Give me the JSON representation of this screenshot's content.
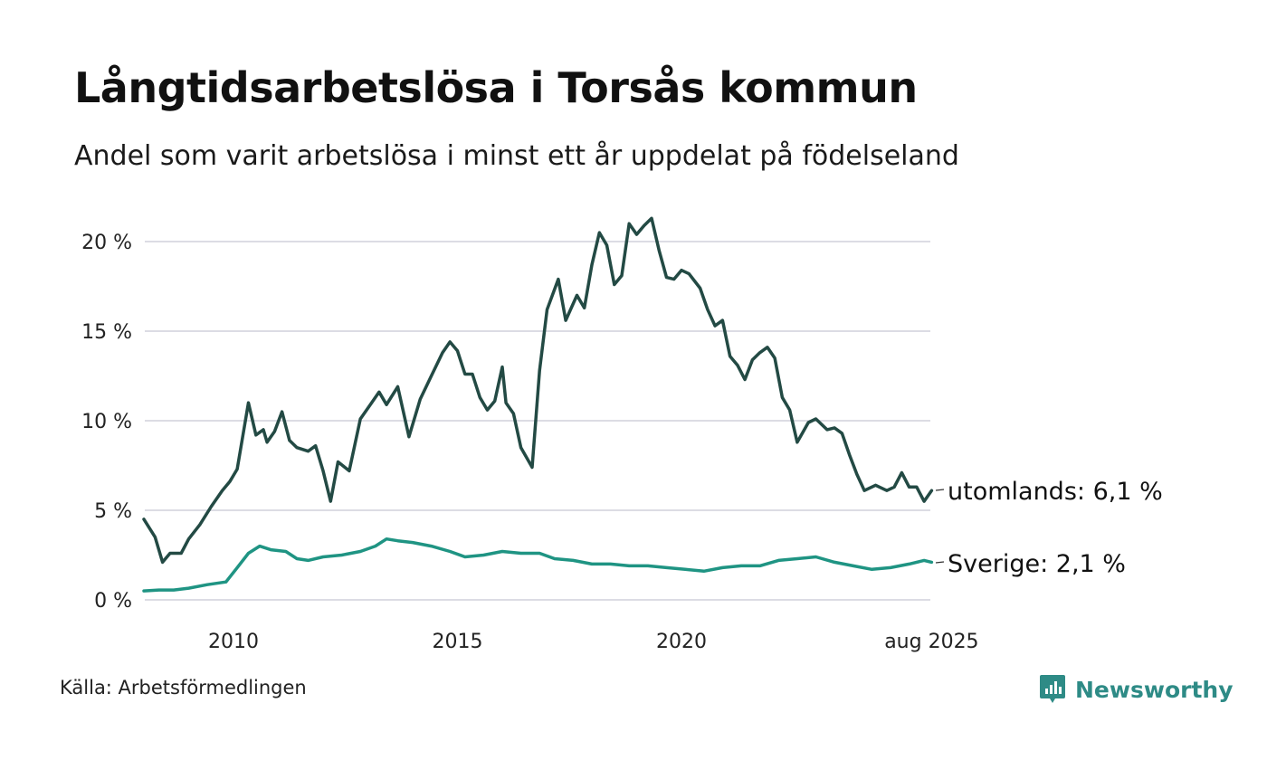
{
  "header": {
    "title": "Långtidsarbetslösa i Torsås kommun",
    "subtitle": "Andel som varit arbetslösa i minst ett år uppdelat på födelseland"
  },
  "footer": {
    "source": "Källa: Arbetsförmedlingen",
    "brand": "Newsworthy"
  },
  "colors": {
    "utomlands": "#234a44",
    "sverige": "#1f9483",
    "grid": "#dcdce4",
    "brand": "#2e8b86"
  },
  "chart_data": {
    "type": "line",
    "title": "Långtidsarbetslösa i Torsås kommun",
    "subtitle": "Andel som varit arbetslösa i minst ett år uppdelat på födelseland",
    "ylim": [
      0,
      21.5
    ],
    "xlim": [
      "2008-01",
      "2025-08"
    ],
    "y_ticks": [
      0,
      5,
      10,
      15,
      20
    ],
    "y_tick_labels": [
      "0 %",
      "5 %",
      "10 %",
      "15 %",
      "20 %"
    ],
    "x_ticks": [
      "2010-01",
      "2015-01",
      "2020-01",
      "2025-08"
    ],
    "x_tick_labels": [
      "2010",
      "2015",
      "2020",
      "aug 2025"
    ],
    "grid": "horizontal",
    "series": [
      {
        "name": "utomlands",
        "end_label": "utomlands: 6,1 %",
        "color": "#234a44",
        "points": [
          [
            "2008-01",
            4.5
          ],
          [
            "2008-04",
            3.5
          ],
          [
            "2008-06",
            2.1
          ],
          [
            "2008-08",
            2.6
          ],
          [
            "2008-11",
            2.6
          ],
          [
            "2009-01",
            3.4
          ],
          [
            "2009-04",
            4.2
          ],
          [
            "2009-07",
            5.2
          ],
          [
            "2009-10",
            6.1
          ],
          [
            "2009-12",
            6.6
          ],
          [
            "2010-02",
            7.3
          ],
          [
            "2010-05",
            11.0
          ],
          [
            "2010-07",
            9.2
          ],
          [
            "2010-09",
            9.5
          ],
          [
            "2010-10",
            8.8
          ],
          [
            "2010-12",
            9.4
          ],
          [
            "2011-02",
            10.5
          ],
          [
            "2011-04",
            8.9
          ],
          [
            "2011-06",
            8.5
          ],
          [
            "2011-09",
            8.3
          ],
          [
            "2011-11",
            8.6
          ],
          [
            "2012-01",
            7.2
          ],
          [
            "2012-03",
            5.5
          ],
          [
            "2012-05",
            7.7
          ],
          [
            "2012-08",
            7.2
          ],
          [
            "2012-11",
            10.1
          ],
          [
            "2013-02",
            11.0
          ],
          [
            "2013-04",
            11.6
          ],
          [
            "2013-06",
            10.9
          ],
          [
            "2013-09",
            11.9
          ],
          [
            "2013-12",
            9.1
          ],
          [
            "2014-03",
            11.2
          ],
          [
            "2014-06",
            12.5
          ],
          [
            "2014-09",
            13.8
          ],
          [
            "2014-11",
            14.4
          ],
          [
            "2015-01",
            13.9
          ],
          [
            "2015-03",
            12.6
          ],
          [
            "2015-05",
            12.6
          ],
          [
            "2015-07",
            11.3
          ],
          [
            "2015-09",
            10.6
          ],
          [
            "2015-11",
            11.1
          ],
          [
            "2016-01",
            13.0
          ],
          [
            "2016-02",
            11.0
          ],
          [
            "2016-04",
            10.4
          ],
          [
            "2016-06",
            8.5
          ],
          [
            "2016-09",
            7.4
          ],
          [
            "2016-11",
            12.8
          ],
          [
            "2017-01",
            16.2
          ],
          [
            "2017-04",
            17.9
          ],
          [
            "2017-06",
            15.6
          ],
          [
            "2017-09",
            17.0
          ],
          [
            "2017-11",
            16.3
          ],
          [
            "2018-01",
            18.7
          ],
          [
            "2018-03",
            20.5
          ],
          [
            "2018-05",
            19.8
          ],
          [
            "2018-07",
            17.6
          ],
          [
            "2018-09",
            18.1
          ],
          [
            "2018-11",
            21.0
          ],
          [
            "2019-01",
            20.4
          ],
          [
            "2019-03",
            20.9
          ],
          [
            "2019-05",
            21.3
          ],
          [
            "2019-07",
            19.5
          ],
          [
            "2019-09",
            18.0
          ],
          [
            "2019-11",
            17.9
          ],
          [
            "2020-01",
            18.4
          ],
          [
            "2020-03",
            18.2
          ],
          [
            "2020-06",
            17.4
          ],
          [
            "2020-08",
            16.2
          ],
          [
            "2020-10",
            15.3
          ],
          [
            "2020-12",
            15.6
          ],
          [
            "2021-02",
            13.6
          ],
          [
            "2021-04",
            13.1
          ],
          [
            "2021-06",
            12.3
          ],
          [
            "2021-08",
            13.4
          ],
          [
            "2021-10",
            13.8
          ],
          [
            "2021-12",
            14.1
          ],
          [
            "2022-02",
            13.5
          ],
          [
            "2022-04",
            11.3
          ],
          [
            "2022-06",
            10.6
          ],
          [
            "2022-08",
            8.8
          ],
          [
            "2022-11",
            9.9
          ],
          [
            "2023-01",
            10.1
          ],
          [
            "2023-04",
            9.5
          ],
          [
            "2023-06",
            9.6
          ],
          [
            "2023-08",
            9.3
          ],
          [
            "2023-10",
            8.1
          ],
          [
            "2023-12",
            7.0
          ],
          [
            "2024-02",
            6.1
          ],
          [
            "2024-05",
            6.4
          ],
          [
            "2024-08",
            6.1
          ],
          [
            "2024-10",
            6.3
          ],
          [
            "2024-12",
            7.1
          ],
          [
            "2025-02",
            6.3
          ],
          [
            "2025-04",
            6.3
          ],
          [
            "2025-06",
            5.5
          ],
          [
            "2025-08",
            6.1
          ]
        ]
      },
      {
        "name": "Sverige",
        "end_label": "Sverige: 2,1 %",
        "color": "#1f9483",
        "points": [
          [
            "2008-01",
            0.5
          ],
          [
            "2008-05",
            0.55
          ],
          [
            "2008-09",
            0.55
          ],
          [
            "2009-01",
            0.65
          ],
          [
            "2009-06",
            0.85
          ],
          [
            "2009-11",
            1.0
          ],
          [
            "2010-02",
            1.8
          ],
          [
            "2010-05",
            2.6
          ],
          [
            "2010-08",
            3.0
          ],
          [
            "2010-11",
            2.8
          ],
          [
            "2011-03",
            2.7
          ],
          [
            "2011-06",
            2.3
          ],
          [
            "2011-09",
            2.2
          ],
          [
            "2012-01",
            2.4
          ],
          [
            "2012-06",
            2.5
          ],
          [
            "2012-11",
            2.7
          ],
          [
            "2013-03",
            3.0
          ],
          [
            "2013-06",
            3.4
          ],
          [
            "2013-09",
            3.3
          ],
          [
            "2014-01",
            3.2
          ],
          [
            "2014-06",
            3.0
          ],
          [
            "2014-11",
            2.7
          ],
          [
            "2015-03",
            2.4
          ],
          [
            "2015-08",
            2.5
          ],
          [
            "2016-01",
            2.7
          ],
          [
            "2016-06",
            2.6
          ],
          [
            "2016-11",
            2.6
          ],
          [
            "2017-03",
            2.3
          ],
          [
            "2017-08",
            2.2
          ],
          [
            "2018-01",
            2.0
          ],
          [
            "2018-06",
            2.0
          ],
          [
            "2018-11",
            1.9
          ],
          [
            "2019-04",
            1.9
          ],
          [
            "2019-09",
            1.8
          ],
          [
            "2020-02",
            1.7
          ],
          [
            "2020-07",
            1.6
          ],
          [
            "2020-12",
            1.8
          ],
          [
            "2021-05",
            1.9
          ],
          [
            "2021-10",
            1.9
          ],
          [
            "2022-03",
            2.2
          ],
          [
            "2022-08",
            2.3
          ],
          [
            "2023-01",
            2.4
          ],
          [
            "2023-06",
            2.1
          ],
          [
            "2023-11",
            1.9
          ],
          [
            "2024-04",
            1.7
          ],
          [
            "2024-09",
            1.8
          ],
          [
            "2025-02",
            2.0
          ],
          [
            "2025-06",
            2.2
          ],
          [
            "2025-08",
            2.1
          ]
        ]
      }
    ]
  }
}
